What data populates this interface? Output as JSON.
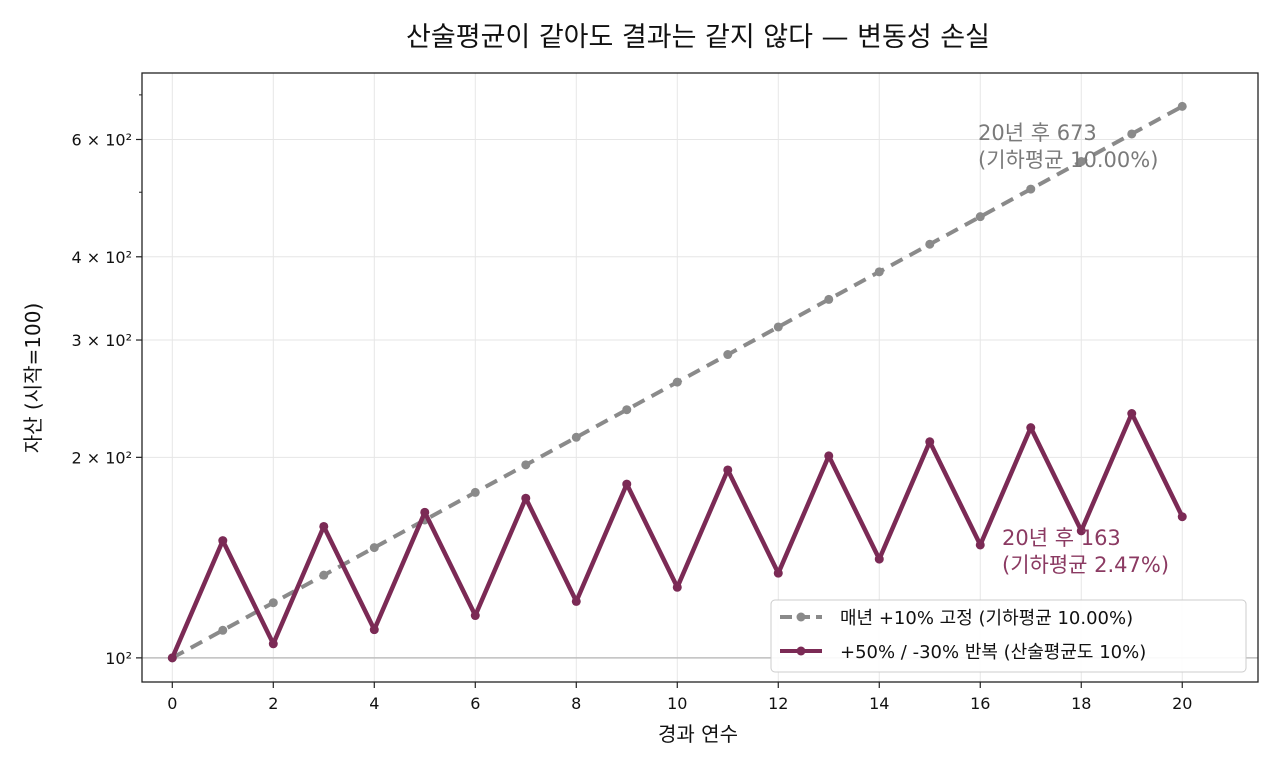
{
  "chart_data": {
    "type": "line",
    "title": "산술평균이 같아도 결과는 같지 않다 — 변동성 손실",
    "xlabel": "경과 연수",
    "ylabel": "자산 (시작=100)",
    "yscale": "log",
    "xlim": [
      -0.6,
      21.5
    ],
    "ylim": [
      92,
      755
    ],
    "grid": true,
    "x_ticks": [
      0,
      2,
      4,
      6,
      8,
      10,
      12,
      14,
      16,
      18,
      20
    ],
    "y_ticks": [
      {
        "value": 100,
        "label": "10²"
      },
      {
        "value": 200,
        "label": "2 × 10²"
      },
      {
        "value": 300,
        "label": "3 × 10²"
      },
      {
        "value": 400,
        "label": "4 × 10²"
      },
      {
        "value": 600,
        "label": "6 × 10²"
      }
    ],
    "y_minor_ticks": [
      500,
      700
    ],
    "reference_line": 100,
    "legend_position": "lower-right",
    "x": [
      0,
      1,
      2,
      3,
      4,
      5,
      6,
      7,
      8,
      9,
      10,
      11,
      12,
      13,
      14,
      15,
      16,
      17,
      18,
      19,
      20
    ],
    "series": [
      {
        "name": "매년 +10% 고정 (기하평균 10.00%)",
        "color": "#8a8a8a",
        "style": "dashed",
        "values": [
          100,
          110,
          121,
          133.1,
          146.41,
          161.05,
          177.16,
          194.87,
          214.36,
          235.79,
          259.37,
          285.31,
          313.84,
          345.23,
          379.75,
          417.72,
          459.5,
          505.45,
          555.99,
          611.59,
          672.75
        ]
      },
      {
        "name": "+50% / -30% 반복 (산술평균도 10%)",
        "color": "#7b2a55",
        "style": "solid",
        "values": [
          100,
          150,
          105,
          157.5,
          110.25,
          165.38,
          115.76,
          173.64,
          121.55,
          182.33,
          127.63,
          191.44,
          134.01,
          201.01,
          140.71,
          211.07,
          147.75,
          221.62,
          155.13,
          232.7,
          162.89
        ]
      }
    ],
    "annotations": [
      {
        "x": 20,
        "series": 0,
        "lines": [
          "20년 후 673",
          "(기하평균 10.00%)"
        ],
        "color": "#7a7a7a"
      },
      {
        "x": 20,
        "series": 1,
        "lines": [
          "20년 후 163",
          "(기하평균 2.47%)"
        ],
        "color": "#8b3a62"
      }
    ]
  }
}
